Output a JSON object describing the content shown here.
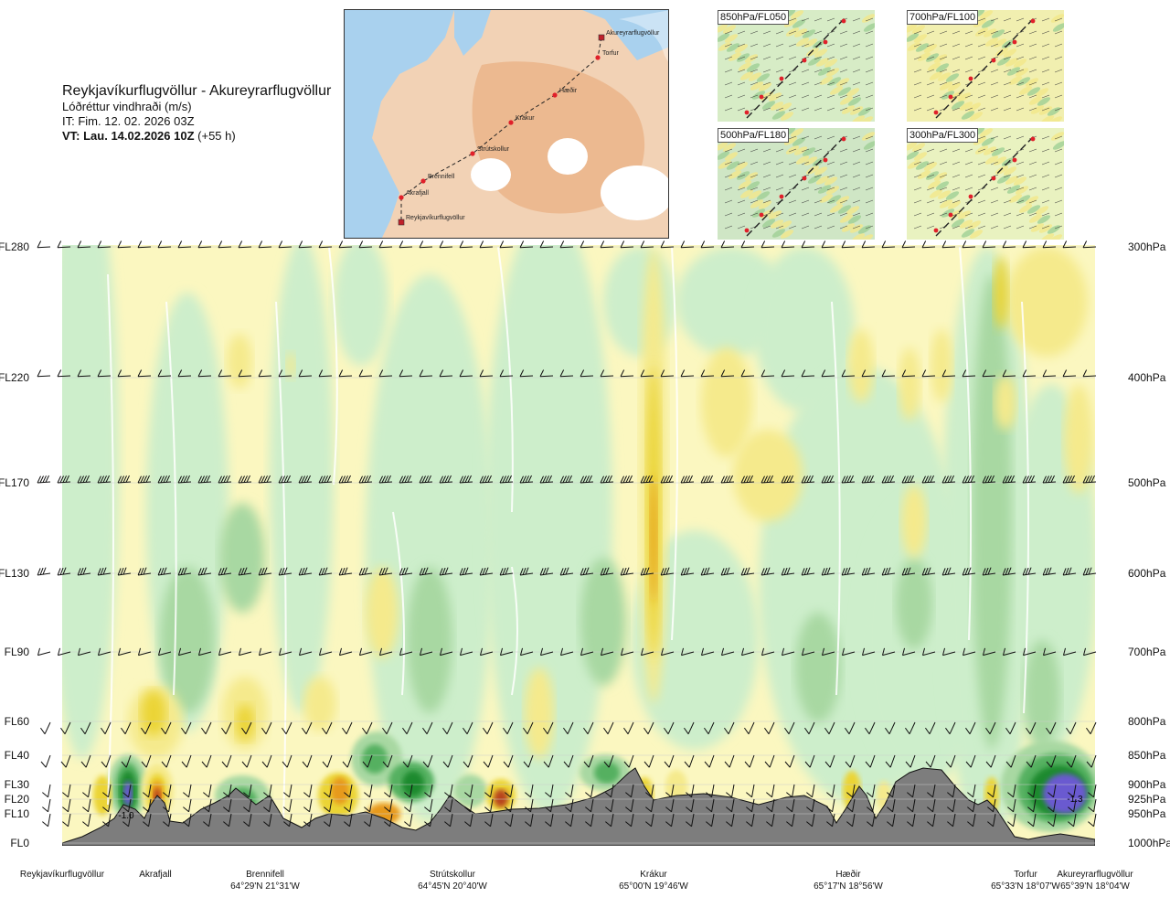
{
  "header": {
    "route": "Reykjavíkurflugvöllur - Akureyrarflugvöllur",
    "parameter": "Lóðréttur vindhraði (m/s)",
    "issue_time": "IT: Fim. 12. 02. 2026 03Z",
    "valid_time_bold": "VT: Lau. 14.02.2026 10Z",
    "valid_time_rest": " (+55 h)"
  },
  "map": {
    "route_points": [
      "Akureyrarflugvöllur",
      "Torfur",
      "Hæðir",
      "Krákur",
      "Strútskollur",
      "Brennifell",
      "Akrafjall",
      "Reykjavíkurflugvöllur"
    ],
    "colors": {
      "sea": "#a9d1ee",
      "land": "#f2d2b5",
      "highland": "#e8a878",
      "glacier": "#ffffff",
      "route": "#222222",
      "point": "#e0202a"
    }
  },
  "thumbnails": [
    {
      "label": "850hPa/FL050"
    },
    {
      "label": "700hPa/FL100"
    },
    {
      "label": "500hPa/FL180"
    },
    {
      "label": "300hPa/FL300"
    }
  ],
  "chart_data": {
    "type": "heatmap",
    "title": "Lóðréttur vindhraði (m/s)",
    "flight_levels": [
      "FL280",
      "FL220",
      "FL170",
      "FL130",
      "FL90",
      "FL60",
      "FL40",
      "FL30",
      "FL20",
      "FL10",
      "FL0"
    ],
    "pressure_levels": [
      "300hPa",
      "400hPa",
      "500hPa",
      "600hPa",
      "700hPa",
      "800hPa",
      "850hPa",
      "900hPa",
      "925hPa",
      "950hPa",
      "1000hPa"
    ],
    "waypoints": [
      {
        "name": "Reykjavíkurflugvöllur",
        "coord": ""
      },
      {
        "name": "Akrafjall",
        "coord": ""
      },
      {
        "name": "Brennifell",
        "coord": "64°29'N 21°31'W"
      },
      {
        "name": "Strútskollur",
        "coord": "64°45'N 20°40'W"
      },
      {
        "name": "Krákur",
        "coord": "65°00'N 19°46'W"
      },
      {
        "name": "Hæðir",
        "coord": "65°17'N 18°56'W"
      },
      {
        "name": "Torfur",
        "coord": "65°33'N 18°07'W"
      },
      {
        "name": "Akureyrarflugvöllur",
        "coord": "65°39'N 18°04'W"
      }
    ],
    "annotations": [
      "-1.0",
      "-1.3"
    ],
    "colors": {
      "strong_down": "#1e8a2e",
      "mod_down": "#55b060",
      "weak_down": "#a8d8a2",
      "faint_down": "#cdeecb",
      "faint_up": "#fbf7c0",
      "weak_up": "#f5ea8c",
      "mod_up": "#ebd435",
      "strong_up": "#e79a1a",
      "vstrong_up": "#b8451a",
      "extreme_down": "#6a5ad0",
      "terrain": "#7d7d7d"
    }
  }
}
